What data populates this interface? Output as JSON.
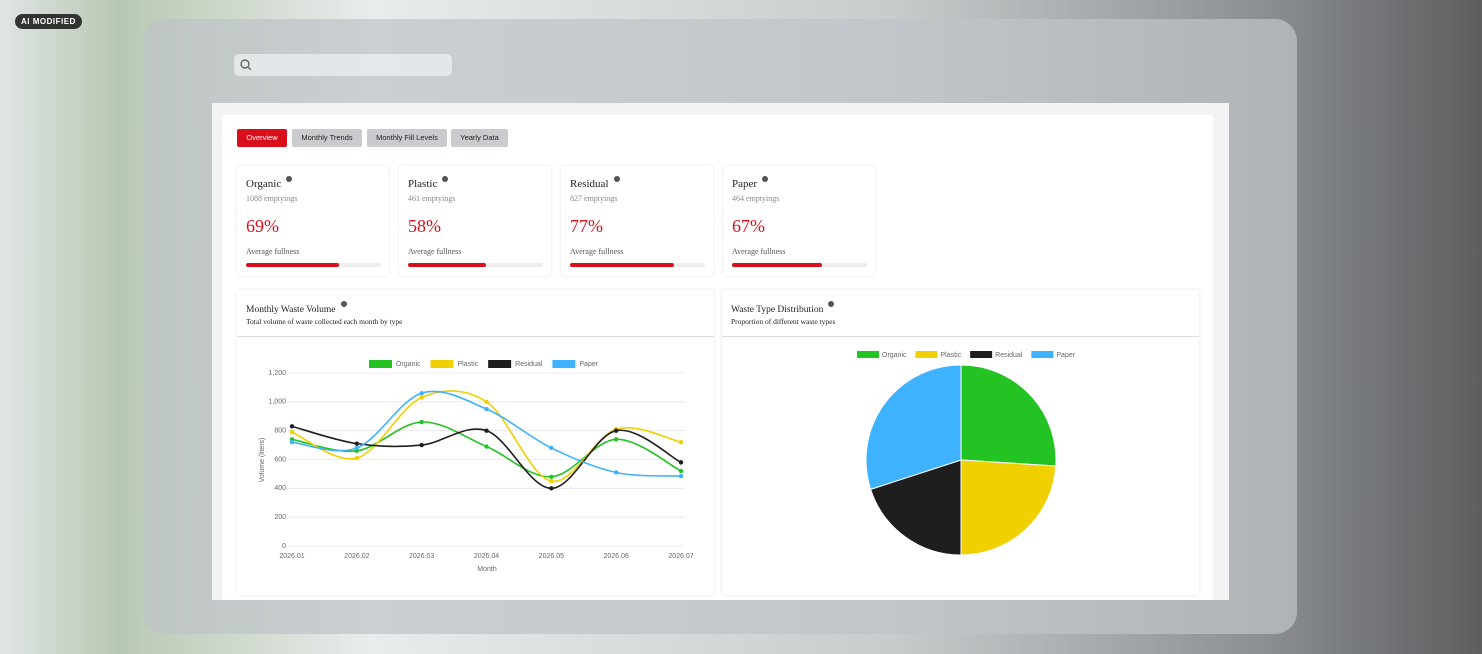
{
  "badge": "AI MODIFIED",
  "tabs": [
    "Overview",
    "Monthly Trends",
    "Monthly Fill Levels",
    "Yearly Data"
  ],
  "active_tab": 0,
  "cards": [
    {
      "name": "Organic",
      "emptyings": "1088 emptyings",
      "fullness": 69,
      "fullness_label": "69%",
      "caption": "Average fullness"
    },
    {
      "name": "Plastic",
      "emptyings": "461 emptyings",
      "fullness": 58,
      "fullness_label": "58%",
      "caption": "Average fullness"
    },
    {
      "name": "Residual",
      "emptyings": "827 emptyings",
      "fullness": 77,
      "fullness_label": "77%",
      "caption": "Average fullness"
    },
    {
      "name": "Paper",
      "emptyings": "464 emptyings",
      "fullness": 67,
      "fullness_label": "67%",
      "caption": "Average fullness"
    }
  ],
  "chart_data": [
    {
      "type": "line",
      "title": "Monthly Waste Volume",
      "subtitle": "Total volume of waste collected each month by type",
      "categories": [
        "2026.01",
        "2026.02",
        "2026.03",
        "2026.04",
        "2026.05",
        "2026.06",
        "2026.07"
      ],
      "x_label": "Month",
      "y_label": "Volume (liters)",
      "ylim": [
        0,
        1200
      ],
      "yticks": [
        0,
        200,
        400,
        600,
        800,
        {
          "value": 1000,
          "label": "1,000"
        },
        {
          "value": 1200,
          "label": "1,200"
        }
      ],
      "grid": true,
      "series": [
        {
          "name": "Organic",
          "color": "#22c322",
          "values": [
            740,
            660,
            860,
            690,
            480,
            740,
            520
          ]
        },
        {
          "name": "Plastic",
          "color": "#f0d000",
          "values": [
            790,
            610,
            1030,
            1000,
            450,
            810,
            720
          ]
        },
        {
          "name": "Residual",
          "color": "#1e1e1e",
          "values": [
            830,
            710,
            700,
            800,
            400,
            800,
            580
          ]
        },
        {
          "name": "Paper",
          "color": "#3eb2ff",
          "values": [
            720,
            680,
            1060,
            950,
            680,
            510,
            485
          ]
        }
      ]
    },
    {
      "type": "pie",
      "title": "Waste Type Distribution",
      "subtitle": "Proportion of different waste types",
      "categories": [
        "Organic",
        "Plastic",
        "Residual",
        "Paper"
      ],
      "values": [
        26,
        24,
        20,
        30
      ],
      "colors": [
        "#22c322",
        "#f0d000",
        "#1e1e1e",
        "#3eb2ff"
      ]
    }
  ]
}
